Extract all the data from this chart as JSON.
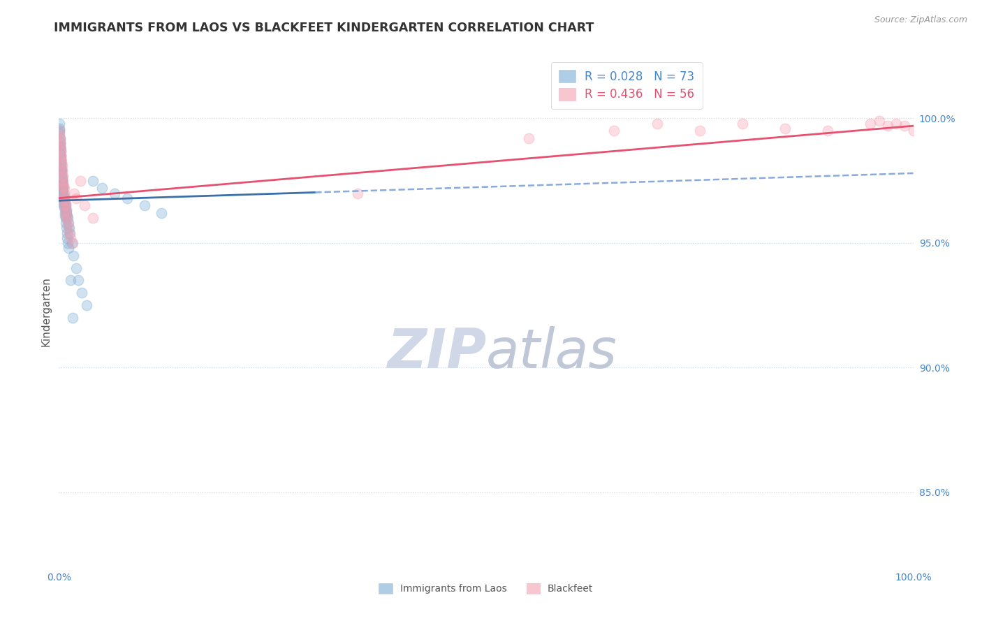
{
  "title": "IMMIGRANTS FROM LAOS VS BLACKFEET KINDERGARTEN CORRELATION CHART",
  "source_text": "Source: ZipAtlas.com",
  "ylabel": "Kindergarten",
  "legend_blue_label": "Immigrants from Laos",
  "legend_pink_label": "Blackfeet",
  "blue_R": 0.028,
  "blue_N": 73,
  "pink_R": 0.436,
  "pink_N": 56,
  "blue_color": "#7aadd4",
  "pink_color": "#f4a0b0",
  "trend_blue_solid_color": "#3a6faa",
  "trend_blue_dash_color": "#88aadd",
  "trend_pink_color": "#e85070",
  "ytick_color": "#4488cc",
  "xtick_color": "#4488cc",
  "grid_color": "#c8d8e8",
  "background_color": "#ffffff",
  "title_color": "#333333",
  "xmin": 0.0,
  "xmax": 100.0,
  "ymin": 82.0,
  "ymax": 102.5,
  "right_yticks": [
    85.0,
    90.0,
    95.0,
    100.0
  ],
  "blue_solid_end_x": 30.0,
  "blue_trendline_y_at0": 96.7,
  "blue_trendline_y_at100": 97.8,
  "pink_trendline_y_at0": 96.8,
  "pink_trendline_y_at100": 99.7,
  "blue_scatter_x": [
    0.05,
    0.08,
    0.1,
    0.12,
    0.15,
    0.18,
    0.2,
    0.22,
    0.25,
    0.28,
    0.3,
    0.32,
    0.35,
    0.38,
    0.4,
    0.42,
    0.45,
    0.48,
    0.5,
    0.55,
    0.6,
    0.65,
    0.7,
    0.75,
    0.8,
    0.85,
    0.9,
    0.95,
    1.0,
    1.1,
    1.2,
    1.3,
    1.5,
    1.7,
    2.0,
    2.3,
    2.7,
    3.2,
    4.0,
    5.0,
    6.5,
    8.0,
    10.0,
    12.0,
    0.06,
    0.09,
    0.11,
    0.14,
    0.16,
    0.19,
    0.21,
    0.24,
    0.27,
    0.31,
    0.34,
    0.37,
    0.41,
    0.44,
    0.47,
    0.52,
    0.58,
    0.62,
    0.68,
    0.72,
    0.78,
    0.82,
    0.88,
    0.92,
    0.98,
    1.05,
    1.15,
    1.4,
    1.6
  ],
  "blue_scatter_y": [
    99.8,
    99.5,
    99.2,
    99.0,
    98.8,
    98.7,
    98.5,
    98.4,
    98.2,
    98.0,
    97.9,
    97.8,
    97.6,
    97.5,
    97.4,
    97.3,
    97.2,
    97.1,
    97.0,
    96.9,
    96.8,
    96.7,
    96.6,
    96.5,
    96.4,
    96.3,
    96.2,
    96.1,
    96.0,
    95.8,
    95.6,
    95.4,
    95.0,
    94.5,
    94.0,
    93.5,
    93.0,
    92.5,
    97.5,
    97.2,
    97.0,
    96.8,
    96.5,
    96.2,
    99.6,
    99.4,
    99.1,
    98.9,
    98.6,
    98.3,
    98.1,
    97.9,
    97.7,
    97.5,
    97.4,
    97.2,
    97.1,
    96.9,
    96.8,
    96.6,
    96.5,
    96.4,
    96.2,
    96.1,
    96.0,
    95.8,
    95.6,
    95.4,
    95.2,
    95.0,
    94.8,
    93.5,
    92.0
  ],
  "pink_scatter_x": [
    0.05,
    0.1,
    0.15,
    0.2,
    0.25,
    0.3,
    0.35,
    0.4,
    0.45,
    0.5,
    0.55,
    0.6,
    0.65,
    0.7,
    0.75,
    0.8,
    0.85,
    0.9,
    0.95,
    1.0,
    1.1,
    1.2,
    1.4,
    1.6,
    1.8,
    2.0,
    2.5,
    3.0,
    4.0,
    35.0,
    55.0,
    65.0,
    70.0,
    75.0,
    80.0,
    85.0,
    90.0,
    95.0,
    96.0,
    97.0,
    98.0,
    99.0,
    100.0,
    0.08,
    0.12,
    0.18,
    0.22,
    0.28,
    0.32,
    0.38,
    0.42,
    0.48,
    0.52,
    0.58,
    0.62,
    0.68
  ],
  "pink_scatter_y": [
    99.5,
    99.2,
    99.0,
    98.8,
    98.5,
    98.3,
    98.1,
    97.9,
    97.7,
    97.5,
    97.3,
    97.2,
    97.0,
    96.8,
    96.6,
    96.5,
    96.3,
    96.1,
    96.0,
    95.8,
    95.6,
    95.4,
    95.2,
    95.0,
    97.0,
    96.8,
    97.5,
    96.5,
    96.0,
    97.0,
    99.2,
    99.5,
    99.8,
    99.5,
    99.8,
    99.6,
    99.5,
    99.8,
    99.9,
    99.7,
    99.8,
    99.7,
    99.5,
    99.3,
    99.0,
    98.7,
    98.5,
    98.2,
    97.9,
    97.7,
    97.4,
    97.2,
    96.9,
    96.7,
    96.5,
    96.2
  ],
  "marker_size": 110,
  "marker_alpha": 0.35,
  "watermark_zip_color": "#d0d8e8",
  "watermark_atlas_color": "#c0c8d8"
}
